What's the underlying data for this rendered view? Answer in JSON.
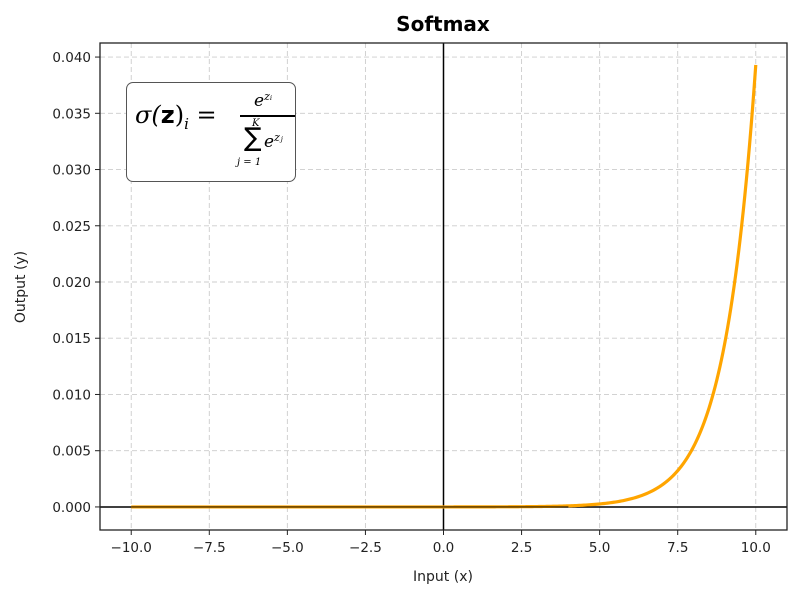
{
  "chart_data": {
    "type": "line",
    "title": "Softmax",
    "xlabel": "Input (x)",
    "ylabel": "Output (y)",
    "xlim": [
      -11.0,
      11.0
    ],
    "ylim": [
      -0.00205,
      0.04125
    ],
    "xticks": [
      -10.0,
      -7.5,
      -5.0,
      -2.5,
      0.0,
      2.5,
      5.0,
      7.5,
      10.0
    ],
    "xtick_labels": [
      "−10.0",
      "−7.5",
      "−5.0",
      "−2.5",
      "0.0",
      "2.5",
      "5.0",
      "7.5",
      "10.0"
    ],
    "yticks": [
      0.0,
      0.005,
      0.01,
      0.015,
      0.02,
      0.025,
      0.03,
      0.035,
      0.04
    ],
    "ytick_labels": [
      "0.000",
      "0.005",
      "0.010",
      "0.015",
      "0.020",
      "0.025",
      "0.030",
      "0.035",
      "0.040"
    ],
    "grid": true,
    "grid_style": "dashed",
    "reference_lines": {
      "horizontal_y": 0,
      "vertical_x": 0,
      "color": "#000000"
    },
    "annotation": "σ(z)_i = e^{z_i} / Σ_{j=1}^{K} e^{z_j}",
    "series": [
      {
        "name": "Softmax",
        "color": "#FFA500",
        "x": [
          -10,
          -8,
          -6,
          -4,
          -2,
          0,
          2,
          4,
          5,
          6,
          6.5,
          7,
          7.5,
          8,
          8.5,
          9,
          9.25,
          9.5,
          9.75,
          10
        ],
        "y": [
          0.0,
          0.0,
          0.0,
          0.0,
          0.0,
          0.0,
          0.0,
          0.0001,
          0.0003,
          0.0007,
          0.0012,
          0.002,
          0.0032,
          0.0053,
          0.0088,
          0.0145,
          0.0186,
          0.0238,
          0.0306,
          0.0393
        ]
      }
    ]
  },
  "formula": {
    "lhs_sigma": "σ(",
    "lhs_z": "z",
    "lhs_close": ")",
    "lhs_sub": "i",
    "equals": " =",
    "num_base": "e",
    "num_exp": "zᵢ",
    "sum_upper": "K",
    "sum_symbol": "∑",
    "den_base": "e",
    "den_exp": "zⱼ",
    "sum_lower": "j = 1"
  }
}
